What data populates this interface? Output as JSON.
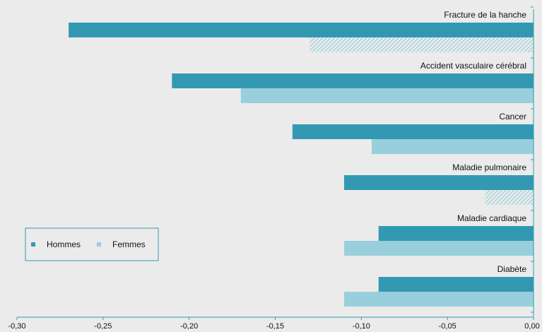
{
  "chart_data": {
    "type": "bar",
    "orientation": "horizontal",
    "categories": [
      "Fracture de la hanche",
      "Accident vasculaire cérébral",
      "Cancer",
      "Maladie pulmonaire",
      "Maladie cardiaque",
      "Diabète"
    ],
    "series": [
      {
        "name": "Hommes",
        "values": [
          -0.27,
          -0.21,
          -0.14,
          -0.11,
          -0.09,
          -0.09
        ],
        "color": "#3399b3",
        "hatched": [
          false,
          false,
          false,
          false,
          false,
          false
        ]
      },
      {
        "name": "Femmes",
        "values": [
          -0.13,
          -0.17,
          -0.094,
          -0.028,
          -0.11,
          -0.11
        ],
        "color": "#99cfdc",
        "hatched": [
          true,
          false,
          false,
          true,
          false,
          false
        ]
      }
    ],
    "xlim": [
      -0.3,
      0.0
    ],
    "xticks": [
      -0.3,
      -0.25,
      -0.2,
      -0.15,
      -0.1,
      -0.05,
      0.0
    ],
    "xtick_labels": [
      "-0,30",
      "-0,25",
      "-0,20",
      "-0,15",
      "-0,10",
      "-0,05",
      "0,00"
    ],
    "legend_position": "left",
    "background": "#ebebeb",
    "axis_color": "#3399b3"
  }
}
